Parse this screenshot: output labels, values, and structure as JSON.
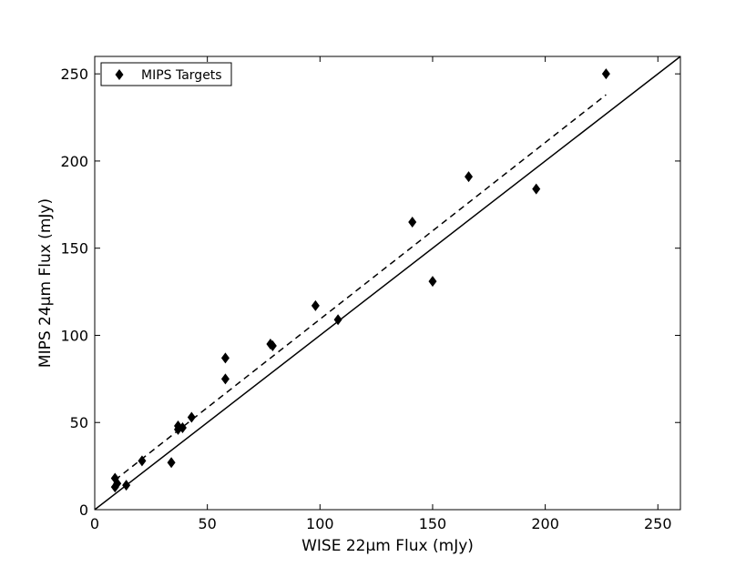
{
  "chart_data": {
    "type": "scatter",
    "xlabel": "WISE 22μm Flux (mJy)",
    "ylabel": "MIPS 24μm Flux (mJy)",
    "xlim": [
      0,
      260
    ],
    "ylim": [
      0,
      260
    ],
    "xticks": [
      0,
      50,
      100,
      150,
      200,
      250
    ],
    "yticks": [
      0,
      50,
      100,
      150,
      200,
      250
    ],
    "grid": false,
    "legend_position": "top-left",
    "series": [
      {
        "name": "MIPS Targets",
        "marker": "diamond",
        "color": "#000000",
        "points": [
          {
            "x": 9,
            "y": 13
          },
          {
            "x": 9,
            "y": 18
          },
          {
            "x": 10,
            "y": 15
          },
          {
            "x": 14,
            "y": 14
          },
          {
            "x": 21,
            "y": 28
          },
          {
            "x": 34,
            "y": 27
          },
          {
            "x": 37,
            "y": 46
          },
          {
            "x": 37,
            "y": 48
          },
          {
            "x": 39,
            "y": 47
          },
          {
            "x": 43,
            "y": 53
          },
          {
            "x": 58,
            "y": 87
          },
          {
            "x": 58,
            "y": 75
          },
          {
            "x": 78,
            "y": 95
          },
          {
            "x": 79,
            "y": 94
          },
          {
            "x": 98,
            "y": 117
          },
          {
            "x": 108,
            "y": 109
          },
          {
            "x": 141,
            "y": 165
          },
          {
            "x": 150,
            "y": 131
          },
          {
            "x": 166,
            "y": 191
          },
          {
            "x": 196,
            "y": 184
          },
          {
            "x": 227,
            "y": 250
          }
        ]
      }
    ],
    "lines": [
      {
        "style": "solid",
        "x": [
          0,
          260
        ],
        "y": [
          0,
          260
        ]
      },
      {
        "style": "dashed",
        "x": [
          9,
          227
        ],
        "y": [
          17,
          238
        ]
      }
    ]
  }
}
